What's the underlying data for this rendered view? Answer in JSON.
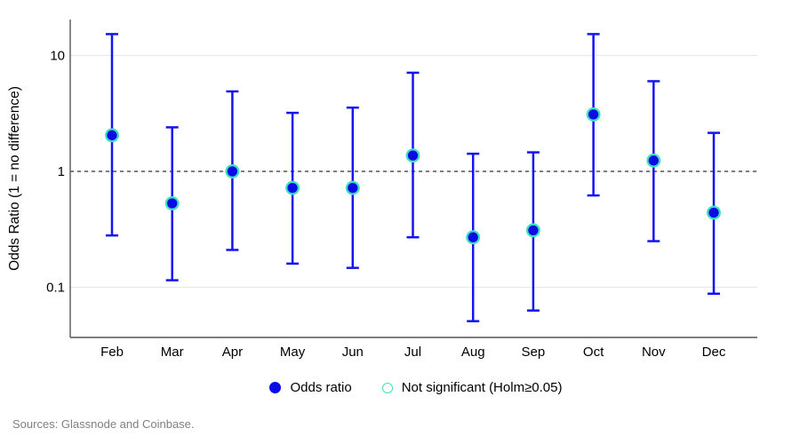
{
  "chart_data": {
    "type": "scatter",
    "subtype": "point-estimates-with-95ci-errorbars",
    "title": "",
    "xlabel": "",
    "ylabel": "Odds Ratio (1 = no difference)",
    "yscale": "log",
    "ylim": [
      0.04,
      27
    ],
    "yticks": [
      {
        "value": 10,
        "label": "10"
      },
      {
        "value": 1,
        "label": "1"
      },
      {
        "value": 0.1,
        "label": "0.1"
      }
    ],
    "reference_line": {
      "value": 1,
      "style": "dashed",
      "color": "#000000"
    },
    "grid": "horizontal",
    "categories": [
      "Feb",
      "Mar",
      "Apr",
      "May",
      "Jun",
      "Jul",
      "Aug",
      "Sep",
      "Oct",
      "Nov",
      "Dec"
    ],
    "series": [
      {
        "name": "Odds ratio",
        "values": [
          2.05,
          0.53,
          1.0,
          0.72,
          0.72,
          1.37,
          0.27,
          0.31,
          3.1,
          1.24,
          0.44
        ],
        "ci_low": [
          0.28,
          0.115,
          0.21,
          0.16,
          0.147,
          0.27,
          0.051,
          0.063,
          0.62,
          0.25,
          0.088
        ],
        "ci_high": [
          15.3,
          2.4,
          4.9,
          3.2,
          3.55,
          7.1,
          1.42,
          1.46,
          15.3,
          6.0,
          2.15
        ]
      }
    ],
    "legend_position": "bottom-center",
    "legend": [
      {
        "label": "Odds ratio",
        "marker": "filled-circle",
        "color": "#0b0be6"
      },
      {
        "label": "Not significant (Holm≥0.05)",
        "marker": "open-circle",
        "color": "#3fe0c0"
      }
    ]
  },
  "colors": {
    "marker_fill": "#0b0be6",
    "marker_edge": "#3fe0c0",
    "errorbar": "#1414f0",
    "gridline": "#e9e9e9",
    "axis": "#555555",
    "reference": "#000000",
    "source_text": "#808080"
  },
  "footer": {
    "source": "Sources: Glassnode and Coinbase."
  }
}
